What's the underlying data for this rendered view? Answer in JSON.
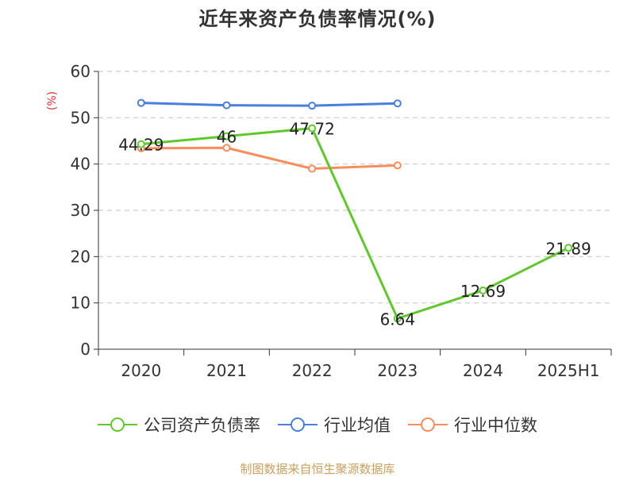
{
  "chart_data": {
    "type": "line",
    "title": "近年来资产负债率情况(%)",
    "ylabel": "(%)",
    "xlabel": "",
    "categories": [
      "2020",
      "2021",
      "2022",
      "2023",
      "2024",
      "2025H1"
    ],
    "ylim": [
      0,
      60
    ],
    "yticks": [
      0,
      10,
      20,
      30,
      40,
      50,
      60
    ],
    "grid": true,
    "legend_position": "bottom",
    "series": [
      {
        "name": "公司资产负债率",
        "color": "#5fc82a",
        "values": [
          44.29,
          46,
          47.72,
          6.64,
          12.69,
          21.89
        ],
        "labels": [
          "44.29",
          "46",
          "47.72",
          "6.64",
          "12.69",
          "21.89"
        ]
      },
      {
        "name": "行业均值",
        "color": "#4a7fdc",
        "values": [
          53.2,
          52.7,
          52.6,
          53.1,
          null,
          null
        ]
      },
      {
        "name": "行业中位数",
        "color": "#fb8c5c",
        "values": [
          43.4,
          43.5,
          39.0,
          39.7,
          null,
          null
        ]
      }
    ]
  },
  "source": "制图数据来自恒生聚源数据库"
}
